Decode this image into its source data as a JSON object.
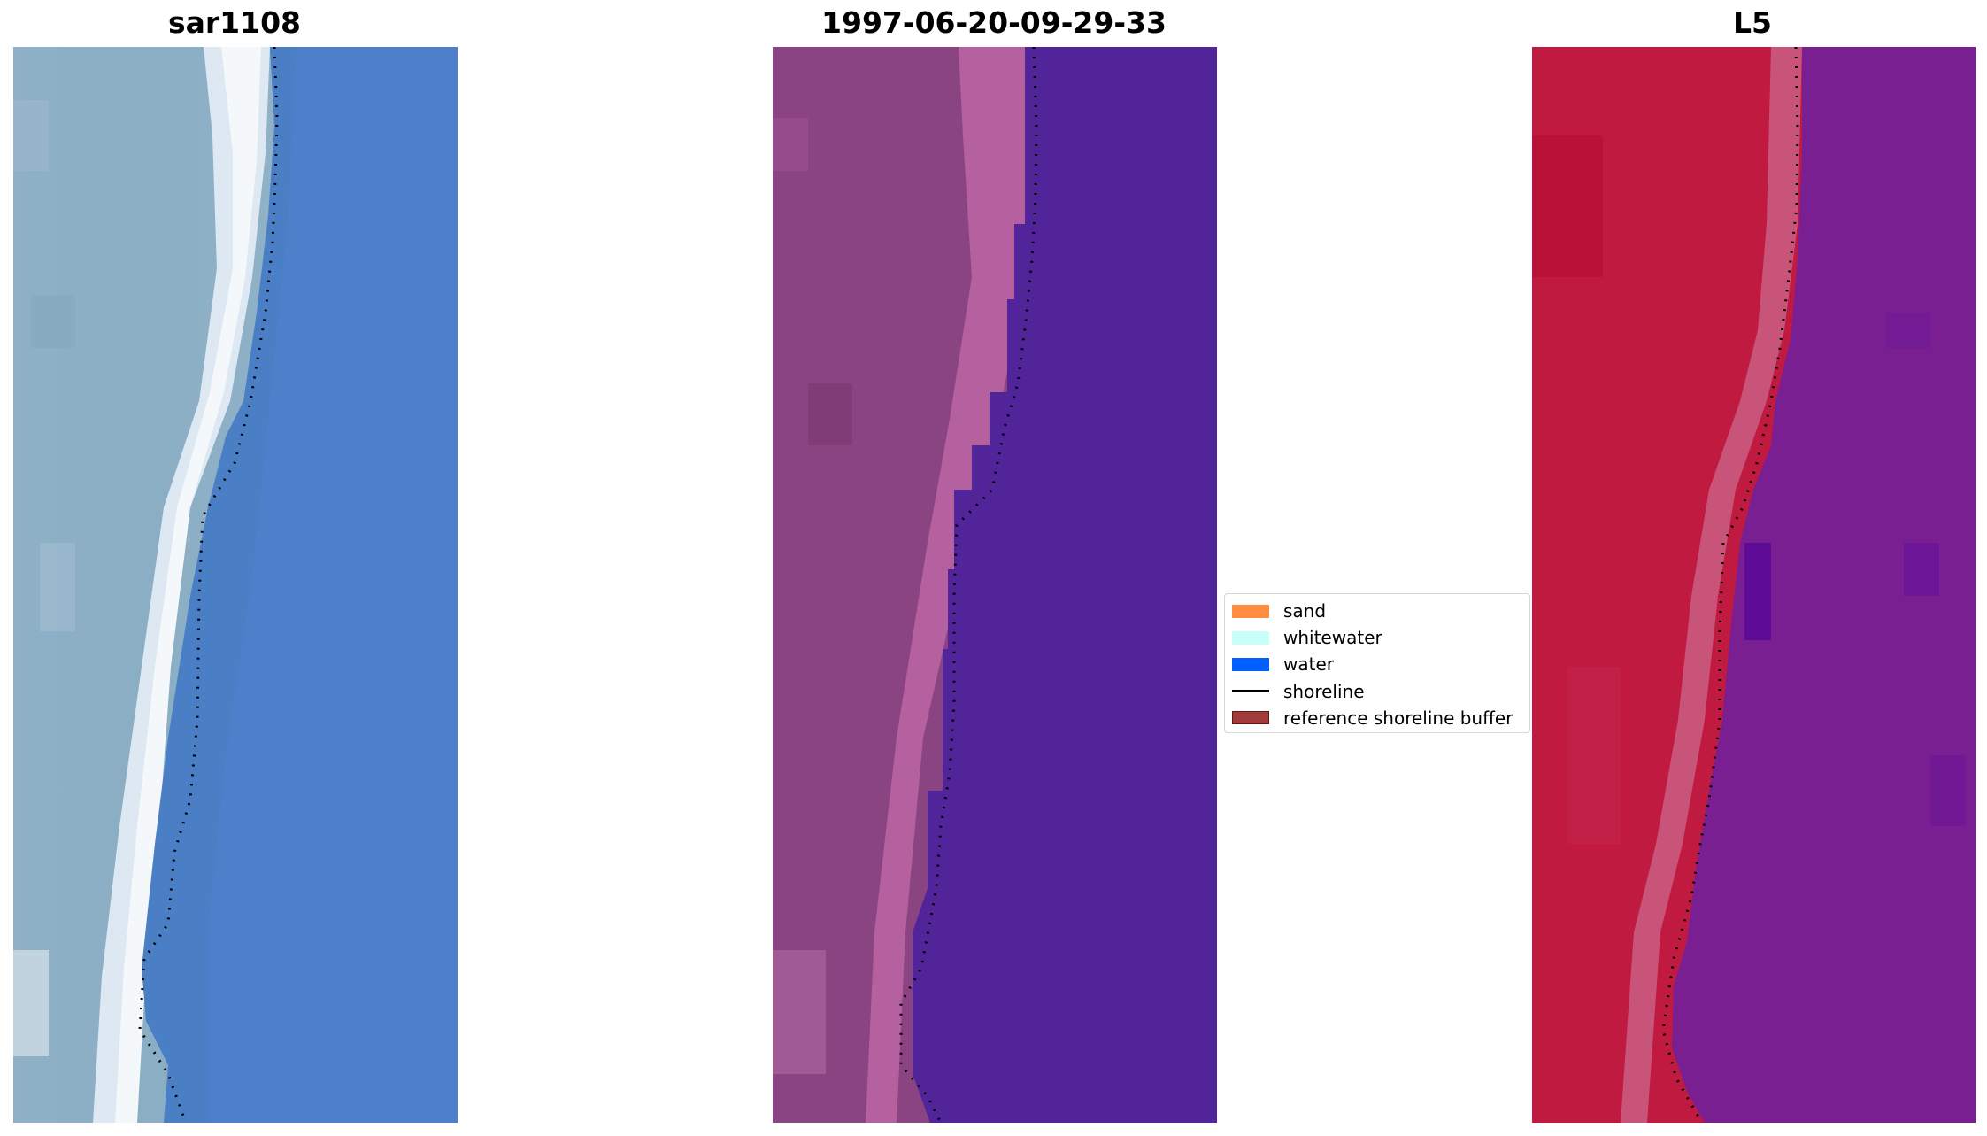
{
  "panels": [
    {
      "title": "sar1108"
    },
    {
      "title": "1997-06-20-09-29-33"
    },
    {
      "title": "L5"
    }
  ],
  "legend": {
    "items": [
      {
        "label": "sand",
        "color": "#ff8c3f",
        "kind": "patch"
      },
      {
        "label": "whitewater",
        "color": "#c8fffb",
        "kind": "patch"
      },
      {
        "label": "water",
        "color": "#0060ff",
        "kind": "patch"
      },
      {
        "label": "shoreline",
        "color": "#000000",
        "kind": "line"
      },
      {
        "label": "reference shoreline buffer",
        "color": "#a33a3a",
        "kind": "patch"
      }
    ]
  }
}
